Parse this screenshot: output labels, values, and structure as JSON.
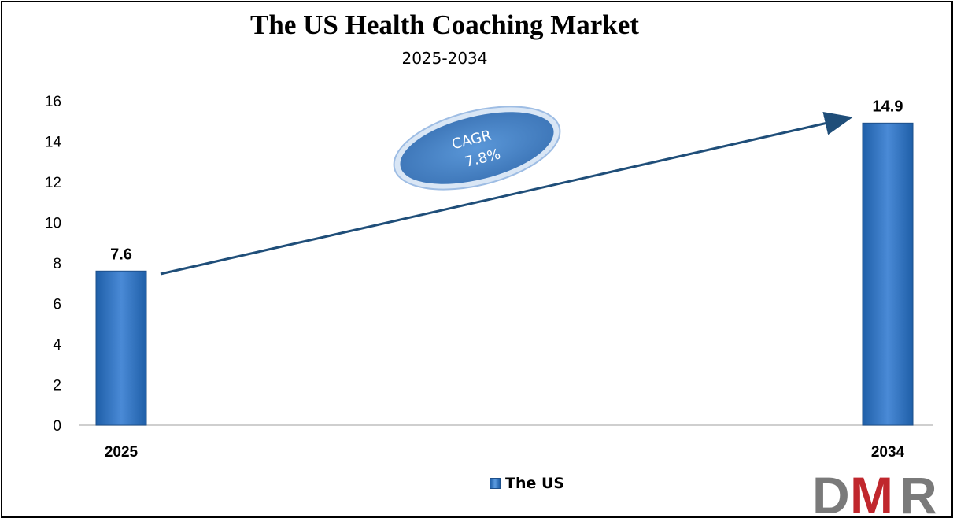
{
  "title": "The US Health Coaching Market",
  "subtitle": "2025-2034",
  "legend_label": "The US",
  "cagr": {
    "label": "CAGR",
    "value": "7.8%"
  },
  "logo_text": "DMR",
  "colors": {
    "bar": "#2e75c6",
    "arrow": "#1f4e79",
    "ellipse": "#4a86c8",
    "logo_gray": "#7a7a7a",
    "logo_red": "#c0272d"
  },
  "chart_data": {
    "type": "bar",
    "title": "The US Health Coaching Market",
    "subtitle": "2025-2034",
    "categories": [
      "2025",
      "2034"
    ],
    "series": [
      {
        "name": "The US",
        "values": [
          7.6,
          14.9
        ]
      }
    ],
    "data_labels": [
      "7.6",
      "14.9"
    ],
    "ylim": [
      0,
      16
    ],
    "yticks": [
      "0",
      "2",
      "4",
      "6",
      "8",
      "10",
      "12",
      "14",
      "16"
    ],
    "xlabel": "",
    "ylabel": "",
    "grid": false,
    "legend": "bottom-center",
    "annotation": "CAGR 7.8%"
  }
}
